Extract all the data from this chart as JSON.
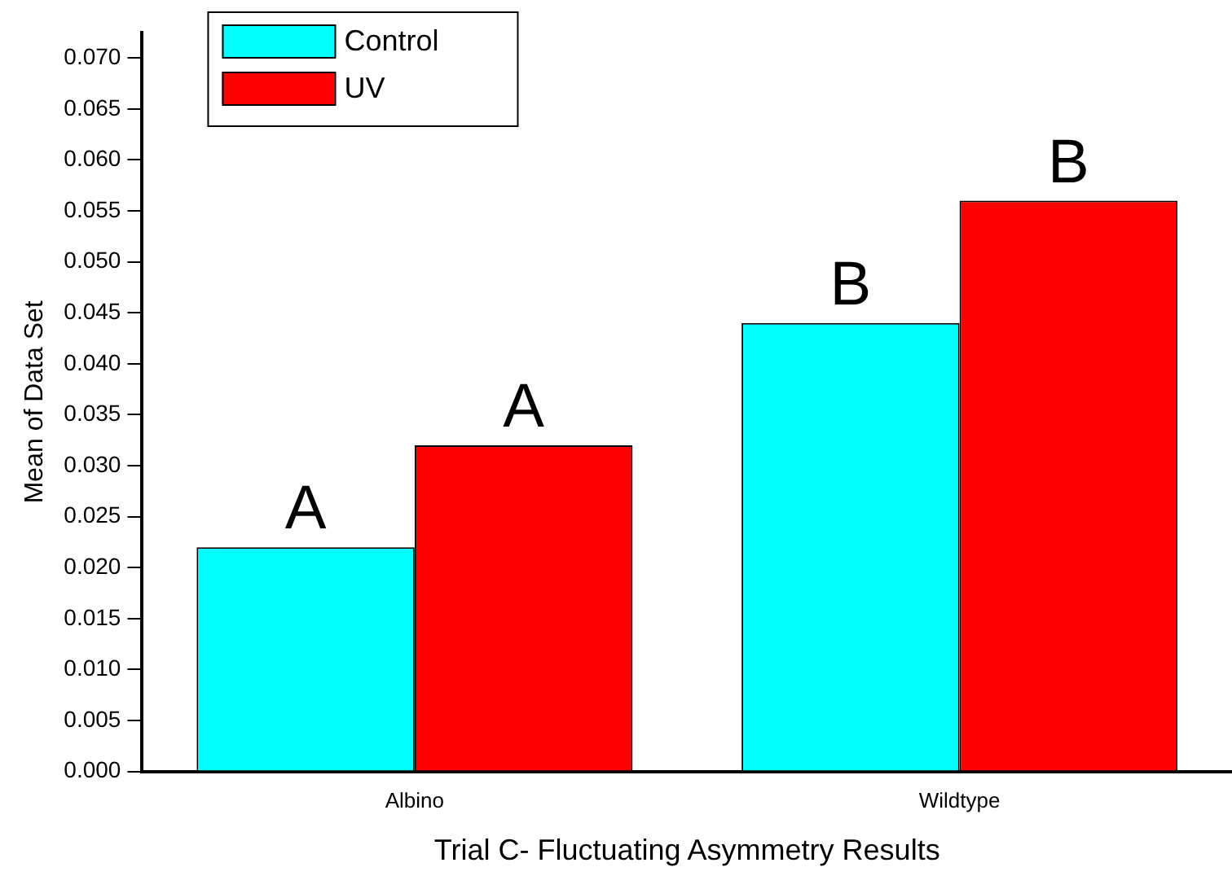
{
  "chart_data": {
    "type": "bar",
    "xlabel": "Trial C- Fluctuating Asymmetry Results",
    "ylabel": "Mean of Data Set",
    "categories": [
      "Albino",
      "Wildtype"
    ],
    "series": [
      {
        "name": "Control",
        "color": "#00ffff",
        "values": [
          0.022,
          0.044
        ],
        "value_labels": [
          "A",
          "B"
        ]
      },
      {
        "name": "UV",
        "color": "#ff0000",
        "values": [
          0.032,
          0.056
        ],
        "value_labels": [
          "A",
          "B"
        ]
      }
    ],
    "ylim": [
      0,
      0.0725
    ],
    "yticks": [
      {
        "value": 0,
        "label": "0.000"
      },
      {
        "value": 0.005,
        "label": "0.005"
      },
      {
        "value": 0.01,
        "label": "0.010"
      },
      {
        "value": 0.015,
        "label": "0.015"
      },
      {
        "value": 0.02,
        "label": "0.020"
      },
      {
        "value": 0.025,
        "label": "0.025"
      },
      {
        "value": 0.03,
        "label": "0.030"
      },
      {
        "value": 0.035,
        "label": "0.035"
      },
      {
        "value": 0.04,
        "label": "0.040"
      },
      {
        "value": 0.045,
        "label": "0.045"
      },
      {
        "value": 0.05,
        "label": "0.050"
      },
      {
        "value": 0.055,
        "label": "0.055"
      },
      {
        "value": 0.06,
        "label": "0.060"
      },
      {
        "value": 0.065,
        "label": "0.065"
      },
      {
        "value": 0.07,
        "label": "0.070"
      }
    ],
    "grid": false,
    "legend": "top left"
  }
}
